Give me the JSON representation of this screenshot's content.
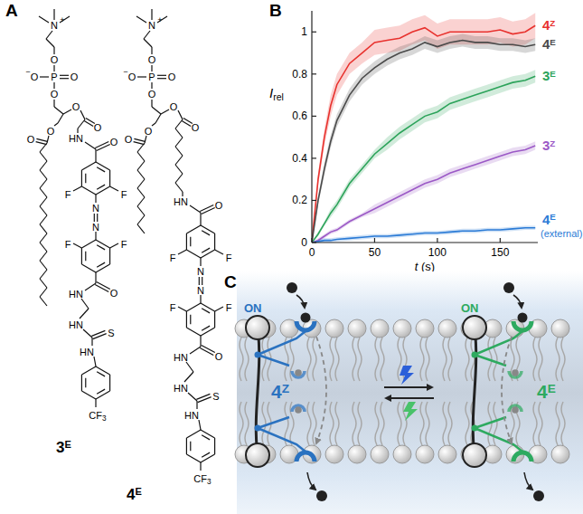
{
  "panel_labels": [
    "A",
    "B",
    "C"
  ],
  "structures": [
    {
      "name": "3E",
      "head_atoms": [
        "N",
        "+",
        "O",
        "P",
        "O",
        "O",
        "−",
        "O",
        "O",
        "O",
        "O",
        "O"
      ],
      "module_atoms": [
        "HN",
        "O",
        "F",
        "F",
        "N",
        "N",
        "F",
        "F",
        "O",
        "HN",
        "HN",
        "S",
        "HN",
        "CF3"
      ]
    },
    {
      "name": "4E",
      "head_atoms": [
        "N",
        "+",
        "O",
        "P",
        "O",
        "O",
        "−",
        "O",
        "O",
        "O",
        "O",
        "O"
      ],
      "module_atoms": [
        "HN",
        "O",
        "F",
        "F",
        "N",
        "N",
        "F",
        "F",
        "O",
        "HN",
        "HN",
        "S",
        "HN",
        "CF3"
      ]
    }
  ],
  "chart_data": {
    "type": "line",
    "x_label": "t (s)",
    "y_label": "Irel",
    "xlim": [
      0,
      180
    ],
    "xticks": [
      0,
      50,
      100,
      150
    ],
    "ylim": [
      0,
      1.1
    ],
    "yticks": [
      0,
      0.2,
      0.4,
      0.6,
      0.8,
      1
    ],
    "x": [
      0,
      5,
      10,
      15,
      20,
      30,
      40,
      50,
      60,
      70,
      80,
      90,
      100,
      110,
      120,
      130,
      140,
      150,
      160,
      170,
      178
    ],
    "series": [
      {
        "name": "4Z",
        "color": "#e8322e",
        "values": [
          0,
          0.3,
          0.5,
          0.65,
          0.75,
          0.85,
          0.9,
          0.95,
          0.96,
          0.97,
          1.0,
          1.02,
          0.98,
          1.0,
          1.0,
          1.0,
          1.0,
          1.01,
          0.99,
          1.0,
          1.03
        ],
        "error": [
          0,
          0.03,
          0.04,
          0.05,
          0.05,
          0.05,
          0.05,
          0.06,
          0.06,
          0.06,
          0.06,
          0.06,
          0.06,
          0.06,
          0.06,
          0.06,
          0.06,
          0.06,
          0.06,
          0.06,
          0.06
        ]
      },
      {
        "name": "4E",
        "color": "#4a4a4a",
        "values": [
          0,
          0.2,
          0.35,
          0.48,
          0.58,
          0.7,
          0.78,
          0.83,
          0.87,
          0.9,
          0.92,
          0.95,
          0.93,
          0.95,
          0.96,
          0.95,
          0.95,
          0.94,
          0.94,
          0.93,
          0.94
        ],
        "error": [
          0,
          0.02,
          0.03,
          0.03,
          0.03,
          0.03,
          0.03,
          0.03,
          0.03,
          0.03,
          0.03,
          0.03,
          0.03,
          0.03,
          0.03,
          0.03,
          0.03,
          0.03,
          0.03,
          0.03,
          0.03
        ]
      },
      {
        "name": "3E",
        "color": "#2ca35a",
        "values": [
          0,
          0.04,
          0.09,
          0.14,
          0.18,
          0.28,
          0.35,
          0.42,
          0.47,
          0.52,
          0.56,
          0.6,
          0.62,
          0.66,
          0.68,
          0.7,
          0.72,
          0.74,
          0.76,
          0.77,
          0.79
        ],
        "error": [
          0,
          0.01,
          0.01,
          0.02,
          0.02,
          0.02,
          0.02,
          0.02,
          0.03,
          0.03,
          0.03,
          0.03,
          0.03,
          0.03,
          0.03,
          0.03,
          0.03,
          0.03,
          0.03,
          0.03,
          0.03
        ]
      },
      {
        "name": "3Z",
        "color": "#9b59c6",
        "values": [
          0,
          0.01,
          0.03,
          0.05,
          0.06,
          0.1,
          0.13,
          0.16,
          0.19,
          0.22,
          0.25,
          0.28,
          0.3,
          0.33,
          0.35,
          0.37,
          0.39,
          0.41,
          0.43,
          0.44,
          0.46
        ],
        "error": [
          0,
          0.01,
          0.01,
          0.01,
          0.01,
          0.01,
          0.01,
          0.02,
          0.02,
          0.02,
          0.02,
          0.02,
          0.02,
          0.02,
          0.02,
          0.02,
          0.02,
          0.02,
          0.02,
          0.02,
          0.02
        ]
      },
      {
        "name": "4E (external)",
        "color": "#2b7bd6",
        "values": [
          0,
          0.005,
          0.01,
          0.01,
          0.015,
          0.02,
          0.025,
          0.03,
          0.03,
          0.035,
          0.04,
          0.045,
          0.045,
          0.05,
          0.055,
          0.055,
          0.06,
          0.06,
          0.065,
          0.07,
          0.07
        ],
        "error": [
          0,
          0.01,
          0.01,
          0.01,
          0.01,
          0.01,
          0.01,
          0.01,
          0.01,
          0.01,
          0.01,
          0.01,
          0.01,
          0.01,
          0.01,
          0.01,
          0.01,
          0.01,
          0.01,
          0.01,
          0.01
        ]
      }
    ]
  },
  "diagram": {
    "labels": [
      {
        "text": "ON",
        "color": "#2a72c0"
      },
      {
        "text": "ON",
        "color": "#2eaa60"
      },
      {
        "text": "4Z",
        "color": "#2a72c0"
      },
      {
        "text": "4E",
        "color": "#2eaa60"
      }
    ]
  }
}
